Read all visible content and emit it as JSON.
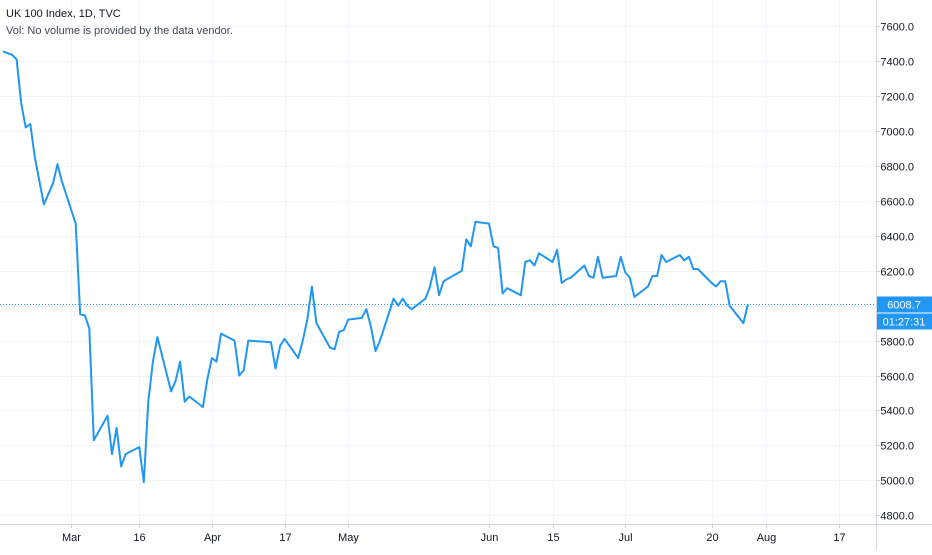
{
  "legend": {
    "symbol_line": "UK 100 Index, 1D, TVC",
    "volume_note": "Vol: No volume is provided by the data vendor."
  },
  "price_axis": {
    "last_price_label": "6008.7",
    "countdown_label": "01:27:31",
    "last_price_color": "#2196f3"
  },
  "colors": {
    "line": "#2196f3",
    "grid": "#f0f3fa",
    "axis_line": "#d1d4dc",
    "axis_text": "#131722"
  },
  "chart_data": {
    "type": "line",
    "grid": true,
    "ylim": [
      4750,
      7750
    ],
    "y_ticks": [
      4800,
      5000,
      5200,
      5400,
      5600,
      5800,
      6000,
      6200,
      6400,
      6600,
      6800,
      7000,
      7200,
      7400,
      7600
    ],
    "y_tick_labels": [
      "4800.0",
      "5000.0",
      "5200.0",
      "5400.0",
      "5600.0",
      "5800.0",
      "6000.0",
      "6200.0",
      "6400.0",
      "6600.0",
      "6800.0",
      "7000.0",
      "7200.0",
      "7400.0",
      "7600.0"
    ],
    "x_tick_labels": [
      {
        "label": "Mar",
        "date": "2020-03-01"
      },
      {
        "label": "16",
        "date": "2020-03-16"
      },
      {
        "label": "Apr",
        "date": "2020-04-01"
      },
      {
        "label": "17",
        "date": "2020-04-17"
      },
      {
        "label": "May",
        "date": "2020-05-01"
      },
      {
        "label": "Jun",
        "date": "2020-06-01"
      },
      {
        "label": "15",
        "date": "2020-06-15"
      },
      {
        "label": "Jul",
        "date": "2020-07-01"
      },
      {
        "label": "20",
        "date": "2020-07-20"
      },
      {
        "label": "Aug",
        "date": "2020-08-01"
      },
      {
        "label": "17",
        "date": "2020-08-17"
      }
    ],
    "xlim": [
      "2020-02-15",
      "2020-08-23"
    ],
    "series": [
      {
        "values": [
          {
            "x": "2020-02-15",
            "y": 7455
          },
          {
            "x": "2020-02-17",
            "y": 7436
          },
          {
            "x": "2020-02-18",
            "y": 7410
          },
          {
            "x": "2020-02-19",
            "y": 7160
          },
          {
            "x": "2020-02-20",
            "y": 7020
          },
          {
            "x": "2020-02-21",
            "y": 7040
          },
          {
            "x": "2020-02-22",
            "y": 6850
          },
          {
            "x": "2020-02-24",
            "y": 6580
          },
          {
            "x": "2020-02-25",
            "y": 6640
          },
          {
            "x": "2020-02-26",
            "y": 6700
          },
          {
            "x": "2020-02-27",
            "y": 6810
          },
          {
            "x": "2020-02-28",
            "y": 6710
          },
          {
            "x": "2020-03-02",
            "y": 6470
          },
          {
            "x": "2020-03-03",
            "y": 5950
          },
          {
            "x": "2020-03-04",
            "y": 5945
          },
          {
            "x": "2020-03-05",
            "y": 5870
          },
          {
            "x": "2020-03-06",
            "y": 5230
          },
          {
            "x": "2020-03-09",
            "y": 5370
          },
          {
            "x": "2020-03-10",
            "y": 5150
          },
          {
            "x": "2020-03-11",
            "y": 5300
          },
          {
            "x": "2020-03-12",
            "y": 5080
          },
          {
            "x": "2020-03-13",
            "y": 5150
          },
          {
            "x": "2020-03-16",
            "y": 5190
          },
          {
            "x": "2020-03-17",
            "y": 4990
          },
          {
            "x": "2020-03-18",
            "y": 5450
          },
          {
            "x": "2020-03-19",
            "y": 5680
          },
          {
            "x": "2020-03-20",
            "y": 5820
          },
          {
            "x": "2020-03-23",
            "y": 5510
          },
          {
            "x": "2020-03-24",
            "y": 5570
          },
          {
            "x": "2020-03-25",
            "y": 5680
          },
          {
            "x": "2020-03-26",
            "y": 5450
          },
          {
            "x": "2020-03-27",
            "y": 5480
          },
          {
            "x": "2020-03-30",
            "y": 5420
          },
          {
            "x": "2020-03-31",
            "y": 5580
          },
          {
            "x": "2020-04-01",
            "y": 5700
          },
          {
            "x": "2020-04-02",
            "y": 5680
          },
          {
            "x": "2020-04-03",
            "y": 5840
          },
          {
            "x": "2020-04-06",
            "y": 5800
          },
          {
            "x": "2020-04-07",
            "y": 5600
          },
          {
            "x": "2020-04-08",
            "y": 5630
          },
          {
            "x": "2020-04-09",
            "y": 5800
          },
          {
            "x": "2020-04-14",
            "y": 5790
          },
          {
            "x": "2020-04-15",
            "y": 5640
          },
          {
            "x": "2020-04-16",
            "y": 5770
          },
          {
            "x": "2020-04-17",
            "y": 5810
          },
          {
            "x": "2020-04-20",
            "y": 5700
          },
          {
            "x": "2020-04-21",
            "y": 5800
          },
          {
            "x": "2020-04-22",
            "y": 5920
          },
          {
            "x": "2020-04-23",
            "y": 6110
          },
          {
            "x": "2020-04-24",
            "y": 5900
          },
          {
            "x": "2020-04-27",
            "y": 5760
          },
          {
            "x": "2020-04-28",
            "y": 5750
          },
          {
            "x": "2020-04-29",
            "y": 5850
          },
          {
            "x": "2020-04-30",
            "y": 5860
          },
          {
            "x": "2020-05-01",
            "y": 5920
          },
          {
            "x": "2020-05-04",
            "y": 5930
          },
          {
            "x": "2020-05-05",
            "y": 5980
          },
          {
            "x": "2020-05-06",
            "y": 5880
          },
          {
            "x": "2020-05-07",
            "y": 5740
          },
          {
            "x": "2020-05-08",
            "y": 5800
          },
          {
            "x": "2020-05-11",
            "y": 6040
          },
          {
            "x": "2020-05-12",
            "y": 6000
          },
          {
            "x": "2020-05-13",
            "y": 6040
          },
          {
            "x": "2020-05-14",
            "y": 6000
          },
          {
            "x": "2020-05-15",
            "y": 5980
          },
          {
            "x": "2020-05-18",
            "y": 6040
          },
          {
            "x": "2020-05-19",
            "y": 6110
          },
          {
            "x": "2020-05-20",
            "y": 6220
          },
          {
            "x": "2020-05-21",
            "y": 6060
          },
          {
            "x": "2020-05-22",
            "y": 6140
          },
          {
            "x": "2020-05-26",
            "y": 6200
          },
          {
            "x": "2020-05-27",
            "y": 6380
          },
          {
            "x": "2020-05-28",
            "y": 6340
          },
          {
            "x": "2020-05-29",
            "y": 6480
          },
          {
            "x": "2020-06-01",
            "y": 6470
          },
          {
            "x": "2020-06-02",
            "y": 6340
          },
          {
            "x": "2020-06-03",
            "y": 6330
          },
          {
            "x": "2020-06-04",
            "y": 6070
          },
          {
            "x": "2020-06-05",
            "y": 6100
          },
          {
            "x": "2020-06-08",
            "y": 6060
          },
          {
            "x": "2020-06-09",
            "y": 6250
          },
          {
            "x": "2020-06-10",
            "y": 6260
          },
          {
            "x": "2020-06-11",
            "y": 6230
          },
          {
            "x": "2020-06-12",
            "y": 6300
          },
          {
            "x": "2020-06-15",
            "y": 6250
          },
          {
            "x": "2020-06-16",
            "y": 6320
          },
          {
            "x": "2020-06-17",
            "y": 6130
          },
          {
            "x": "2020-06-18",
            "y": 6150
          },
          {
            "x": "2020-06-19",
            "y": 6160
          },
          {
            "x": "2020-06-22",
            "y": 6230
          },
          {
            "x": "2020-06-23",
            "y": 6170
          },
          {
            "x": "2020-06-24",
            "y": 6160
          },
          {
            "x": "2020-06-25",
            "y": 6280
          },
          {
            "x": "2020-06-26",
            "y": 6160
          },
          {
            "x": "2020-06-29",
            "y": 6170
          },
          {
            "x": "2020-06-30",
            "y": 6280
          },
          {
            "x": "2020-07-01",
            "y": 6190
          },
          {
            "x": "2020-07-02",
            "y": 6160
          },
          {
            "x": "2020-07-03",
            "y": 6050
          },
          {
            "x": "2020-07-06",
            "y": 6110
          },
          {
            "x": "2020-07-07",
            "y": 6170
          },
          {
            "x": "2020-07-08",
            "y": 6170
          },
          {
            "x": "2020-07-09",
            "y": 6290
          },
          {
            "x": "2020-07-10",
            "y": 6250
          },
          {
            "x": "2020-07-13",
            "y": 6290
          },
          {
            "x": "2020-07-14",
            "y": 6260
          },
          {
            "x": "2020-07-15",
            "y": 6280
          },
          {
            "x": "2020-07-16",
            "y": 6210
          },
          {
            "x": "2020-07-17",
            "y": 6210
          },
          {
            "x": "2020-07-20",
            "y": 6130
          },
          {
            "x": "2020-07-21",
            "y": 6110
          },
          {
            "x": "2020-07-22",
            "y": 6140
          },
          {
            "x": "2020-07-23",
            "y": 6140
          },
          {
            "x": "2020-07-24",
            "y": 6000
          },
          {
            "x": "2020-07-27",
            "y": 5900
          },
          {
            "x": "2020-07-28",
            "y": 6008.7
          }
        ]
      }
    ],
    "last_value": 6008.7
  }
}
